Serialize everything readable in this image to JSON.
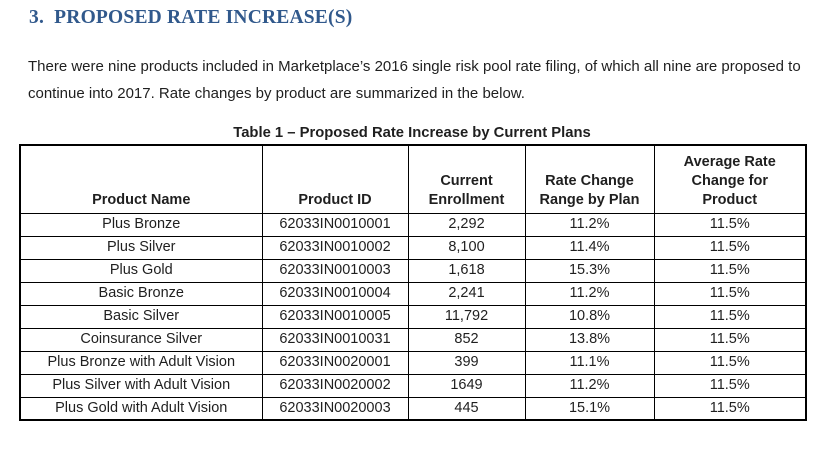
{
  "page": {
    "heading": "3.  PROPOSED RATE INCREASE(S)",
    "paragraph": "There were nine products included in Marketplace’s 2016 single risk pool rate filing, of which all nine are proposed to continue into 2017. Rate changes by product are summarized in the below."
  },
  "table": {
    "caption": "Table 1 – Proposed Rate Increase by Current Plans",
    "columns": [
      "Product Name",
      "Product ID",
      "Current\nEnrollment",
      "Rate Change\nRange by Plan",
      "Average Rate\nChange for\nProduct"
    ],
    "rows": [
      [
        "Plus Bronze",
        "62033IN0010001",
        "2,292",
        "11.2%",
        "11.5%"
      ],
      [
        "Plus Silver",
        "62033IN0010002",
        "8,100",
        "11.4%",
        "11.5%"
      ],
      [
        "Plus Gold",
        "62033IN0010003",
        "1,618",
        "15.3%",
        "11.5%"
      ],
      [
        "Basic Bronze",
        "62033IN0010004",
        "2,241",
        "11.2%",
        "11.5%"
      ],
      [
        "Basic Silver",
        "62033IN0010005",
        "11,792",
        "10.8%",
        "11.5%"
      ],
      [
        "Coinsurance Silver",
        "62033IN0010031",
        "852",
        "13.8%",
        "11.5%"
      ],
      [
        "Plus Bronze with Adult Vision",
        "62033IN0020001",
        "399",
        "11.1%",
        "11.5%"
      ],
      [
        "Plus Silver with Adult Vision",
        "62033IN0020002",
        "1649",
        "11.2%",
        "11.5%"
      ],
      [
        "Plus Gold with Adult Vision",
        "62033IN0020003",
        "445",
        "15.1%",
        "11.5%"
      ]
    ]
  },
  "colors": {
    "heading": "#31598C",
    "text": "#1f1f1f",
    "border": "#000000",
    "background": "#ffffff"
  }
}
